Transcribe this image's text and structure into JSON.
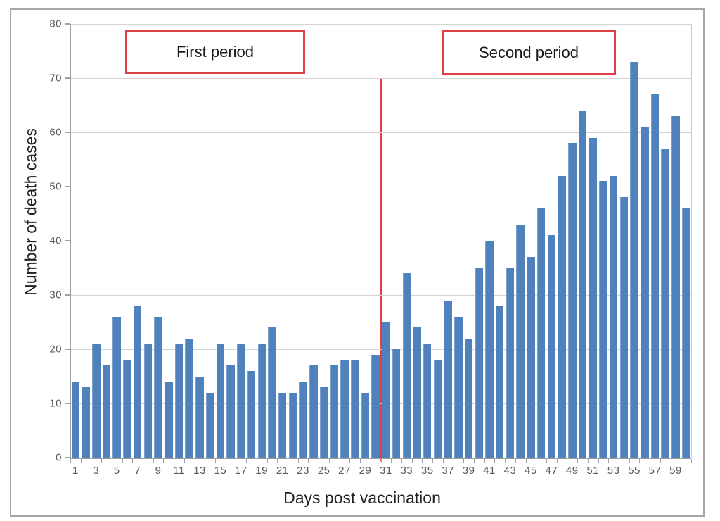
{
  "figure": {
    "xlabel": "Days post vaccination",
    "ylabel": "Number of death cases",
    "first_period_label": "First period",
    "second_period_label": "Second period"
  },
  "colors": {
    "bar_blue": "#4f81bd",
    "annotation_red": "#e04044",
    "gridline_gray": "#d4d4d4",
    "axis_gray": "#a0a0a0",
    "tick_label_gray": "#595959",
    "title_text": "#222222",
    "frame_gray": "#a6a6a6"
  },
  "chart_data": {
    "type": "bar",
    "title": "",
    "xlabel": "Days post vaccination",
    "ylabel": "Number of death cases",
    "x": [
      1,
      2,
      3,
      4,
      5,
      6,
      7,
      8,
      9,
      10,
      11,
      12,
      13,
      14,
      15,
      16,
      17,
      18,
      19,
      20,
      21,
      22,
      23,
      24,
      25,
      26,
      27,
      28,
      29,
      30,
      31,
      32,
      33,
      34,
      35,
      36,
      37,
      38,
      39,
      40,
      41,
      42,
      43,
      44,
      45,
      46,
      47,
      48,
      49,
      50,
      51,
      52,
      53,
      54,
      55,
      56,
      57,
      58,
      59,
      60
    ],
    "values": [
      14,
      13,
      21,
      17,
      26,
      18,
      28,
      21,
      26,
      14,
      21,
      22,
      15,
      12,
      21,
      17,
      21,
      16,
      21,
      24,
      12,
      12,
      14,
      17,
      13,
      17,
      18,
      18,
      12,
      19,
      25,
      20,
      34,
      24,
      21,
      18,
      29,
      26,
      22,
      35,
      40,
      28,
      35,
      43,
      37,
      46,
      41,
      52,
      58,
      64,
      59,
      51,
      52,
      48,
      73,
      61,
      67,
      57,
      63,
      46
    ],
    "ylim": [
      0,
      80
    ],
    "yticks": [
      0,
      10,
      20,
      30,
      40,
      50,
      60,
      70,
      80
    ],
    "xtick_labels": [
      1,
      3,
      5,
      7,
      9,
      11,
      13,
      15,
      17,
      19,
      21,
      23,
      25,
      27,
      29,
      31,
      33,
      35,
      37,
      39,
      41,
      43,
      45,
      47,
      49,
      51,
      53,
      55,
      57,
      59
    ],
    "grid": "horizontal-only",
    "legend": "none",
    "annotations": [
      {
        "type": "box-label",
        "text": "First period",
        "region": "days 6-23"
      },
      {
        "type": "box-label",
        "text": "Second period",
        "region": "days 37-53"
      },
      {
        "type": "vline",
        "between_days": [
          30,
          31
        ],
        "from_value": 70,
        "to_value": 0,
        "color": "#e04044"
      }
    ]
  }
}
